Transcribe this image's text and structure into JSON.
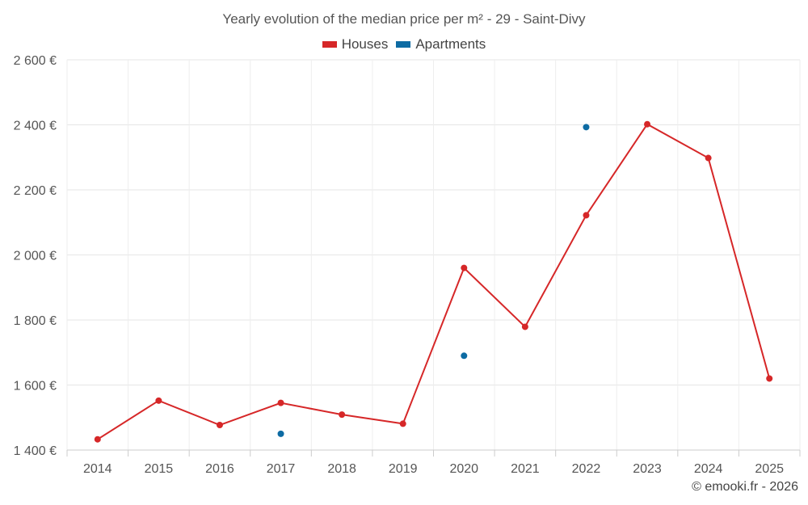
{
  "chart_data": {
    "type": "line",
    "title": "Yearly evolution of the median price per m² - 29 - Saint-Divy",
    "xlabel": "",
    "ylabel": "",
    "categories": [
      "2014",
      "2015",
      "2016",
      "2017",
      "2018",
      "2019",
      "2020",
      "2021",
      "2022",
      "2023",
      "2024",
      "2025"
    ],
    "ylim": [
      1400,
      2600
    ],
    "yticks": [
      1400,
      1600,
      1800,
      2000,
      2200,
      2400,
      2600
    ],
    "ytick_labels": [
      "1 400 €",
      "1 600 €",
      "1 800 €",
      "2 000 €",
      "2 200 €",
      "2 400 €",
      "2 600 €"
    ],
    "grid": true,
    "legend_position": "top-center",
    "series": [
      {
        "name": "Houses",
        "color": "#d62728",
        "style": "line-markers",
        "values": [
          1433,
          1552,
          1477,
          1545,
          1509,
          1481,
          1960,
          1779,
          2122,
          2402,
          2298,
          1620
        ]
      },
      {
        "name": "Apartments",
        "color": "#0d6ba3",
        "style": "markers",
        "values": [
          null,
          null,
          null,
          1450,
          null,
          null,
          1690,
          null,
          2393,
          null,
          null,
          null
        ]
      }
    ]
  },
  "footer": {
    "copyright": "© emooki.fr - 2026"
  }
}
